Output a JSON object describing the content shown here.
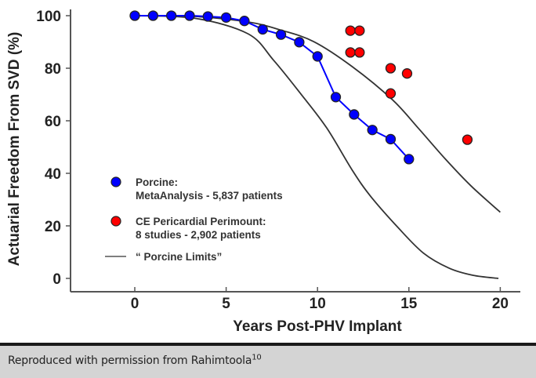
{
  "chart_data": {
    "type": "scatter",
    "title": "",
    "xlabel": "Years Post-PHV Implant",
    "ylabel": "Actuarial Freedom From SVD (%)",
    "xlim": [
      -3,
      21.5
    ],
    "ylim": [
      -5,
      101
    ],
    "xticks": [
      0,
      5,
      10,
      15,
      20
    ],
    "yticks": [
      0,
      20,
      40,
      60,
      80,
      100
    ],
    "grid": false,
    "legend_position": "bottom-left",
    "series": [
      {
        "name": "Porcine: MetaAnalysis - 5,837 patients",
        "legend_line1": "Porcine:",
        "legend_line2": "MetaAnalysis -  5,837 patients",
        "color": "#0000ff",
        "marker": "circle",
        "connected": true,
        "x": [
          0,
          1,
          2,
          3,
          4,
          5,
          6,
          7,
          8,
          9,
          10,
          11,
          12,
          13,
          14,
          15
        ],
        "y": [
          100,
          100,
          100,
          100,
          99.7,
          99.3,
          98,
          94.8,
          92.8,
          89.9,
          84.5,
          69,
          62.4,
          56.5,
          53,
          45.4
        ]
      },
      {
        "name": "CE Pericardial Perimount: 8 studies - 2,902 patients",
        "legend_line1": "CE Pericardial Perimount:",
        "legend_line2": "8 studies - 2,902 patients",
        "color": "#ff0000",
        "marker": "circle",
        "connected": false,
        "x": [
          11.8,
          12.3,
          11.8,
          12.3,
          14.0,
          14.9,
          14.0,
          18.2
        ],
        "y": [
          94.3,
          94.3,
          86,
          86,
          80,
          78,
          70.4,
          52.8
        ]
      },
      {
        "name": "Porcine Limits (upper)",
        "color": "#333333",
        "marker": "none",
        "connected": true,
        "x": [
          0,
          3.3,
          6.2,
          8,
          9.8,
          11.9,
          14.1,
          15.5,
          17.0,
          18.4,
          20.0
        ],
        "y": [
          100,
          99.7,
          97.6,
          94.5,
          90.1,
          80.6,
          68,
          57.3,
          45.4,
          35.2,
          25.2
        ]
      },
      {
        "name": "Porcine Limits (lower)",
        "color": "#333333",
        "marker": "none",
        "connected": true,
        "x": [
          0,
          3.3,
          6.2,
          7.6,
          9.1,
          10.5,
          11.9,
          12.9,
          14.4,
          15.8,
          17.2,
          18.5,
          19.9
        ],
        "y": [
          100,
          99,
          93.1,
          83,
          70.1,
          57.3,
          41.2,
          31.3,
          19.4,
          9.6,
          3.9,
          1.2,
          0
        ]
      }
    ],
    "legend": [
      {
        "label_line1": "Porcine:",
        "label_line2": "MetaAnalysis -  5,837 patients",
        "symbol": "blue-circle"
      },
      {
        "label_line1": "CE Pericardial Perimount:",
        "label_line2": "8 studies - 2,902 patients",
        "symbol": "red-circle"
      },
      {
        "label_line1": "“ Porcine Limits”",
        "symbol": "gray-line"
      }
    ]
  },
  "caption": {
    "text": "Reproduced with permission from Rahimtoola",
    "superscript": "10"
  }
}
